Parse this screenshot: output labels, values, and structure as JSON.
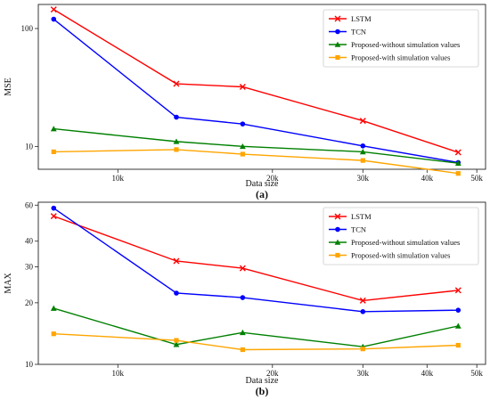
{
  "chart_data": [
    {
      "type": "line",
      "panel_label": "(a)",
      "xlabel": "Data size",
      "ylabel": "MSE",
      "x_scale": "log",
      "y_scale": "log",
      "xlim": [
        7000,
        52000
      ],
      "ylim": [
        6.4,
        160
      ],
      "x_ticks": [
        {
          "value": 10000,
          "label": "10k"
        },
        {
          "value": 20000,
          "label": "20k"
        },
        {
          "value": 30000,
          "label": "30k"
        },
        {
          "value": 40000,
          "label": "40k"
        },
        {
          "value": 50000,
          "label": "50k"
        }
      ],
      "y_ticks": [
        {
          "value": 10,
          "label": "10"
        },
        {
          "value": 100,
          "label": "100"
        }
      ],
      "x": [
        7500,
        13000,
        17500,
        30000,
        46000
      ],
      "legend_position": "top-right",
      "series": [
        {
          "name": "LSTM",
          "color": "#ff0000",
          "marker": "x",
          "values": [
            145,
            34,
            32,
            16.5,
            8.9
          ]
        },
        {
          "name": "TCN",
          "color": "#0000ff",
          "marker": "o",
          "values": [
            120,
            17.7,
            15.5,
            10.1,
            7.3
          ]
        },
        {
          "name": "Proposed-without simulation values",
          "color": "#008000",
          "marker": "^",
          "values": [
            14.1,
            11,
            10,
            9,
            7.2
          ]
        },
        {
          "name": "Proposed-with simulation values",
          "color": "#ffa500",
          "marker": "s",
          "values": [
            9,
            9.4,
            8.6,
            7.6,
            5.9
          ]
        }
      ]
    },
    {
      "type": "line",
      "panel_label": "(b)",
      "xlabel": "Data size",
      "ylabel": "MAX",
      "x_scale": "log",
      "y_scale": "log",
      "xlim": [
        7000,
        52000
      ],
      "ylim": [
        10,
        62
      ],
      "x_ticks": [
        {
          "value": 10000,
          "label": "10k"
        },
        {
          "value": 20000,
          "label": "20k"
        },
        {
          "value": 30000,
          "label": "30k"
        },
        {
          "value": 40000,
          "label": "40k"
        },
        {
          "value": 50000,
          "label": "50k"
        }
      ],
      "y_ticks": [
        {
          "value": 10,
          "label": "10"
        },
        {
          "value": 20,
          "label": "20"
        },
        {
          "value": 30,
          "label": "30"
        },
        {
          "value": 40,
          "label": "40"
        },
        {
          "value": 60,
          "label": "60"
        }
      ],
      "x": [
        7500,
        13000,
        17500,
        30000,
        46000
      ],
      "legend_position": "top-right",
      "series": [
        {
          "name": "LSTM",
          "color": "#ff0000",
          "marker": "x",
          "values": [
            53,
            32,
            29.5,
            20.5,
            23
          ]
        },
        {
          "name": "TCN",
          "color": "#0000ff",
          "marker": "o",
          "values": [
            58,
            22.3,
            21.2,
            18.1,
            18.4
          ]
        },
        {
          "name": "Proposed-without simulation values",
          "color": "#008000",
          "marker": "^",
          "values": [
            18.8,
            12.5,
            14.3,
            12.2,
            15.4
          ]
        },
        {
          "name": "Proposed-with simulation values",
          "color": "#ffa500",
          "marker": "s",
          "values": [
            14.1,
            13.1,
            11.8,
            11.9,
            12.4
          ]
        }
      ]
    }
  ]
}
